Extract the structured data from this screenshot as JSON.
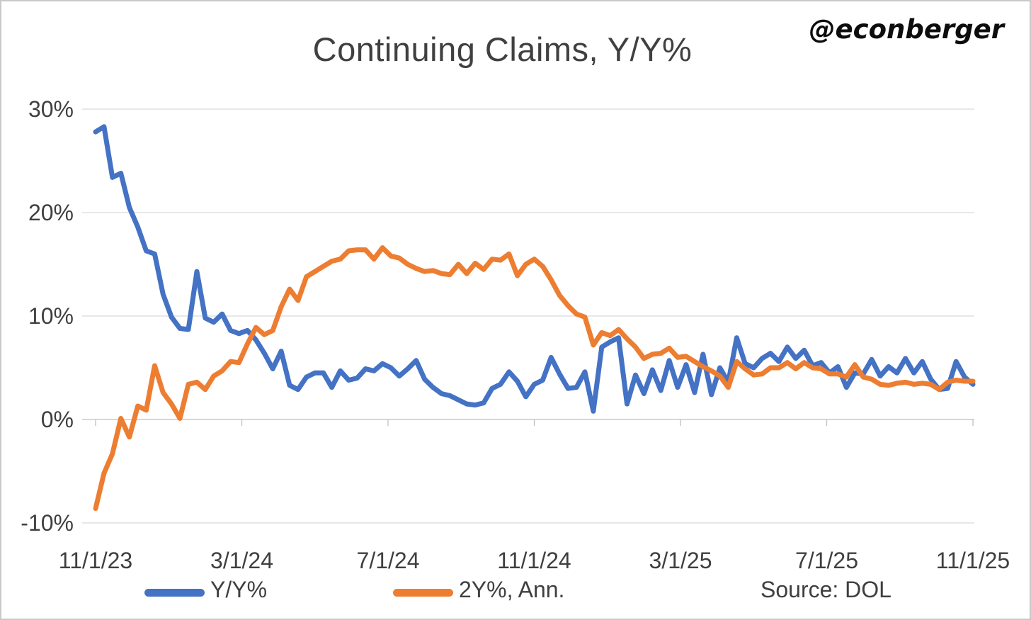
{
  "title": "Continuing Claims, Y/Y%",
  "watermark": "@econberger",
  "source": "Source: DOL",
  "legend": [
    {
      "label": "Y/Y%",
      "color": "#4472C4"
    },
    {
      "label": "2Y%, Ann.",
      "color": "#ED7D31"
    }
  ],
  "colors": {
    "series_yoy": "#4472C4",
    "series_2y_ann": "#ED7D31",
    "gridline": "#D9D9D9",
    "axis": "#BFBFBF",
    "title_text": "#404040",
    "axis_text": "#3f3f3f"
  },
  "chart_data": {
    "type": "line",
    "title": "Continuing Claims, Y/Y%",
    "xlabel": "",
    "ylabel": "",
    "frequency": "weekly",
    "x_start": "11/1/23",
    "x_end": "11/1/25",
    "x_tick_labels": [
      "11/1/23",
      "3/1/24",
      "7/1/24",
      "11/1/24",
      "3/1/25",
      "7/1/25",
      "11/1/25"
    ],
    "y_ticks": [
      30,
      20,
      10,
      0,
      -10
    ],
    "y_tick_labels": [
      "30%",
      "20%",
      "10%",
      "0%",
      "-10%"
    ],
    "ylim": [
      -10,
      30
    ],
    "grid": "horizontal",
    "legend_position": "bottom",
    "series": [
      {
        "name": "Y/Y%",
        "color": "#4472C4",
        "values": [
          27.8,
          28.3,
          23.4,
          23.8,
          20.5,
          18.6,
          16.3,
          16.0,
          12.1,
          9.9,
          8.8,
          8.7,
          14.3,
          9.8,
          9.4,
          10.2,
          8.6,
          8.3,
          8.6,
          7.7,
          6.4,
          4.9,
          6.6,
          3.3,
          2.9,
          4.1,
          4.5,
          4.5,
          3.1,
          4.7,
          3.8,
          4.0,
          4.9,
          4.7,
          5.4,
          5.0,
          4.2,
          4.9,
          5.7,
          3.9,
          3.1,
          2.5,
          2.3,
          1.9,
          1.5,
          1.4,
          1.6,
          3.0,
          3.4,
          4.6,
          3.7,
          2.2,
          3.4,
          3.8,
          6.0,
          4.4,
          3.0,
          3.1,
          4.6,
          0.8,
          7.0,
          7.5,
          7.9,
          1.5,
          4.3,
          2.5,
          4.8,
          2.8,
          5.7,
          3.1,
          5.3,
          2.6,
          6.3,
          2.4,
          5.0,
          3.6,
          7.9,
          5.4,
          5.0,
          5.9,
          6.4,
          5.6,
          7.0,
          5.9,
          6.7,
          5.2,
          5.5,
          4.5,
          5.1,
          3.1,
          4.5,
          4.4,
          5.8,
          4.2,
          5.1,
          4.5,
          5.9,
          4.5,
          5.6,
          3.9,
          2.9,
          3.0,
          5.6,
          4.1,
          3.4
        ]
      },
      {
        "name": "2Y%, Ann.",
        "color": "#ED7D31",
        "values": [
          -8.6,
          -5.2,
          -3.3,
          0.1,
          -1.7,
          1.3,
          0.9,
          5.2,
          2.6,
          1.5,
          0.1,
          3.4,
          3.6,
          2.9,
          4.2,
          4.7,
          5.6,
          5.5,
          7.3,
          8.9,
          8.2,
          8.6,
          10.9,
          12.6,
          11.5,
          13.8,
          14.3,
          14.8,
          15.3,
          15.5,
          16.3,
          16.4,
          16.4,
          15.5,
          16.6,
          15.8,
          15.6,
          15.0,
          14.6,
          14.3,
          14.4,
          14.1,
          14.0,
          15.0,
          14.1,
          15.1,
          14.5,
          15.5,
          15.4,
          16.0,
          13.9,
          15.0,
          15.5,
          14.8,
          13.5,
          12.0,
          11.0,
          10.2,
          9.9,
          7.2,
          8.4,
          8.1,
          8.7,
          7.8,
          7.0,
          5.9,
          6.3,
          6.4,
          6.9,
          6.0,
          6.1,
          5.6,
          5.1,
          4.7,
          4.2,
          3.1,
          5.6,
          4.9,
          4.3,
          4.4,
          5.0,
          5.0,
          5.5,
          4.9,
          5.5,
          5.0,
          4.9,
          4.4,
          4.4,
          4.1,
          5.3,
          4.1,
          3.9,
          3.4,
          3.3,
          3.5,
          3.6,
          3.4,
          3.5,
          3.4,
          2.9,
          3.6,
          3.8,
          3.7,
          3.7
        ]
      }
    ]
  }
}
